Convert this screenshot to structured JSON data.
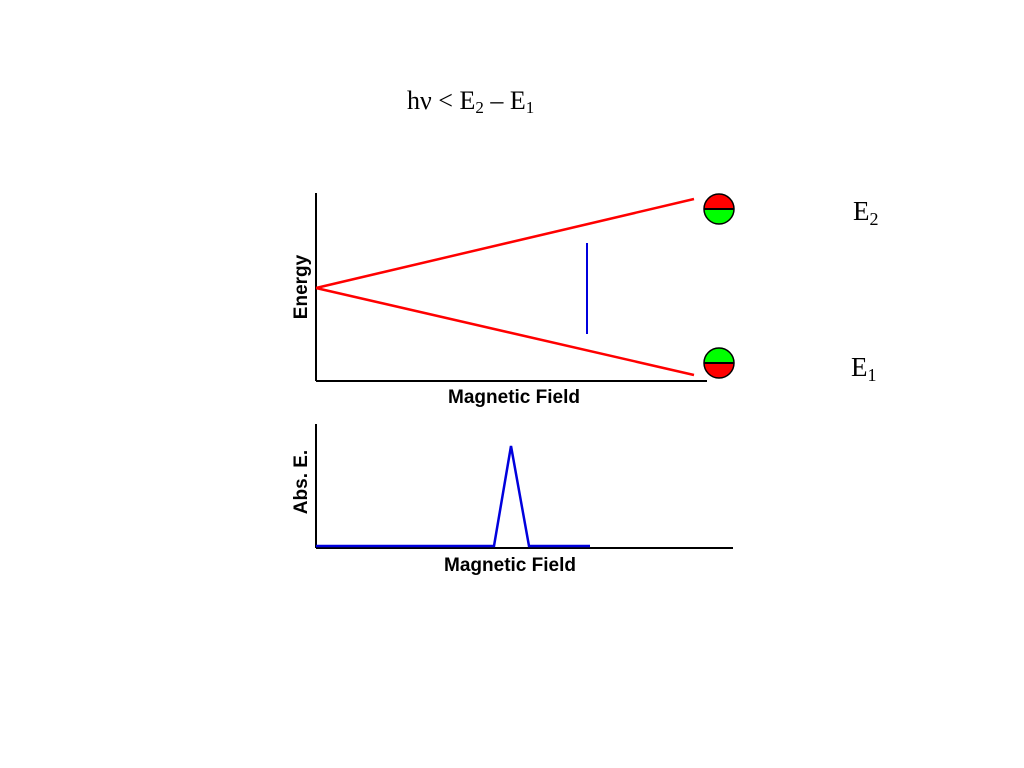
{
  "equation": {
    "lhs": "hν",
    "op": "<",
    "e2_base": "E",
    "e2_sub": "2",
    "minus": "–",
    "e1_base": "E",
    "e1_sub": "1"
  },
  "levels": {
    "upper": {
      "base": "E",
      "sub": "2"
    },
    "lower": {
      "base": "E",
      "sub": "1"
    }
  },
  "energy_plot": {
    "ylabel": "Energy",
    "xlabel": "Magnetic Field"
  },
  "absorption_plot": {
    "ylabel": "Abs. E.",
    "xlabel": "Magnetic Field"
  },
  "colors": {
    "energy_lines": "#ff0000",
    "transition": "#0000dd",
    "spectrum": "#0000dd",
    "spin_up_half": "#ff0000",
    "spin_down_half": "#00ff00",
    "axes": "#000000"
  }
}
